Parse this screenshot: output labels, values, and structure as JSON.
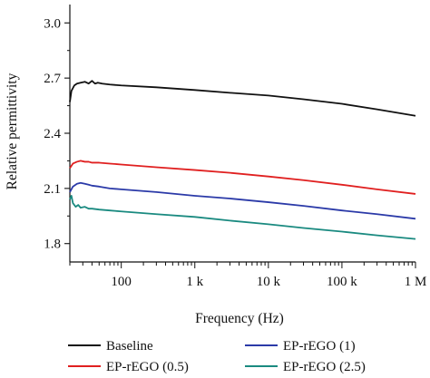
{
  "chart_data": {
    "type": "line",
    "title": "",
    "xlabel": "Frequency (Hz)",
    "ylabel": "Relative permittivity",
    "x_scale": "log",
    "xlim": [
      20,
      1000000
    ],
    "ylim": [
      1.7,
      3.1
    ],
    "grid": false,
    "legend_position": "bottom",
    "x_ticks": [
      {
        "value": 100,
        "label": "100"
      },
      {
        "value": 1000,
        "label": "1 k"
      },
      {
        "value": 10000,
        "label": "10 k"
      },
      {
        "value": 100000,
        "label": "100 k"
      },
      {
        "value": 1000000,
        "label": "1 M"
      }
    ],
    "y_ticks": [
      {
        "value": 1.8,
        "label": "1.8"
      },
      {
        "value": 2.1,
        "label": "2.1"
      },
      {
        "value": 2.4,
        "label": "2.4"
      },
      {
        "value": 2.7,
        "label": "2.7"
      },
      {
        "value": 3.0,
        "label": "3.0"
      }
    ],
    "series": [
      {
        "name": "Baseline",
        "color": "#111111",
        "x": [
          20,
          21,
          23,
          25,
          28,
          32,
          36,
          40,
          44,
          48,
          55,
          70,
          100,
          300,
          1000,
          3000,
          10000,
          30000,
          100000,
          300000,
          1000000
        ],
        "y": [
          2.57,
          2.63,
          2.66,
          2.67,
          2.675,
          2.68,
          2.67,
          2.685,
          2.67,
          2.675,
          2.67,
          2.665,
          2.66,
          2.65,
          2.635,
          2.62,
          2.605,
          2.585,
          2.56,
          2.53,
          2.495
        ]
      },
      {
        "name": "EP-rEGO (0.5)",
        "color": "#e02020",
        "x": [
          20,
          22,
          25,
          28,
          32,
          36,
          40,
          50,
          70,
          100,
          300,
          1000,
          3000,
          10000,
          30000,
          100000,
          300000,
          1000000
        ],
        "y": [
          2.21,
          2.235,
          2.245,
          2.25,
          2.245,
          2.245,
          2.24,
          2.24,
          2.235,
          2.23,
          2.215,
          2.2,
          2.185,
          2.165,
          2.145,
          2.12,
          2.095,
          2.07
        ]
      },
      {
        "name": "EP-rEGO (1)",
        "color": "#2b3aa8",
        "x": [
          20,
          22,
          25,
          28,
          32,
          36,
          40,
          50,
          70,
          100,
          300,
          1000,
          3000,
          10000,
          30000,
          100000,
          300000,
          1000000
        ],
        "y": [
          2.08,
          2.11,
          2.125,
          2.13,
          2.125,
          2.12,
          2.115,
          2.11,
          2.1,
          2.095,
          2.08,
          2.06,
          2.045,
          2.025,
          2.005,
          1.98,
          1.96,
          1.935
        ]
      },
      {
        "name": "EP-rEGO (2.5)",
        "color": "#1a8a80",
        "x": [
          20,
          21,
          22,
          24,
          26,
          28,
          32,
          36,
          40,
          50,
          70,
          100,
          300,
          1000,
          3000,
          10000,
          30000,
          100000,
          300000,
          1000000
        ],
        "y": [
          2.04,
          2.06,
          2.02,
          2.0,
          2.01,
          1.995,
          2.0,
          1.99,
          1.99,
          1.985,
          1.98,
          1.975,
          1.96,
          1.945,
          1.925,
          1.905,
          1.885,
          1.865,
          1.845,
          1.825
        ]
      }
    ]
  }
}
